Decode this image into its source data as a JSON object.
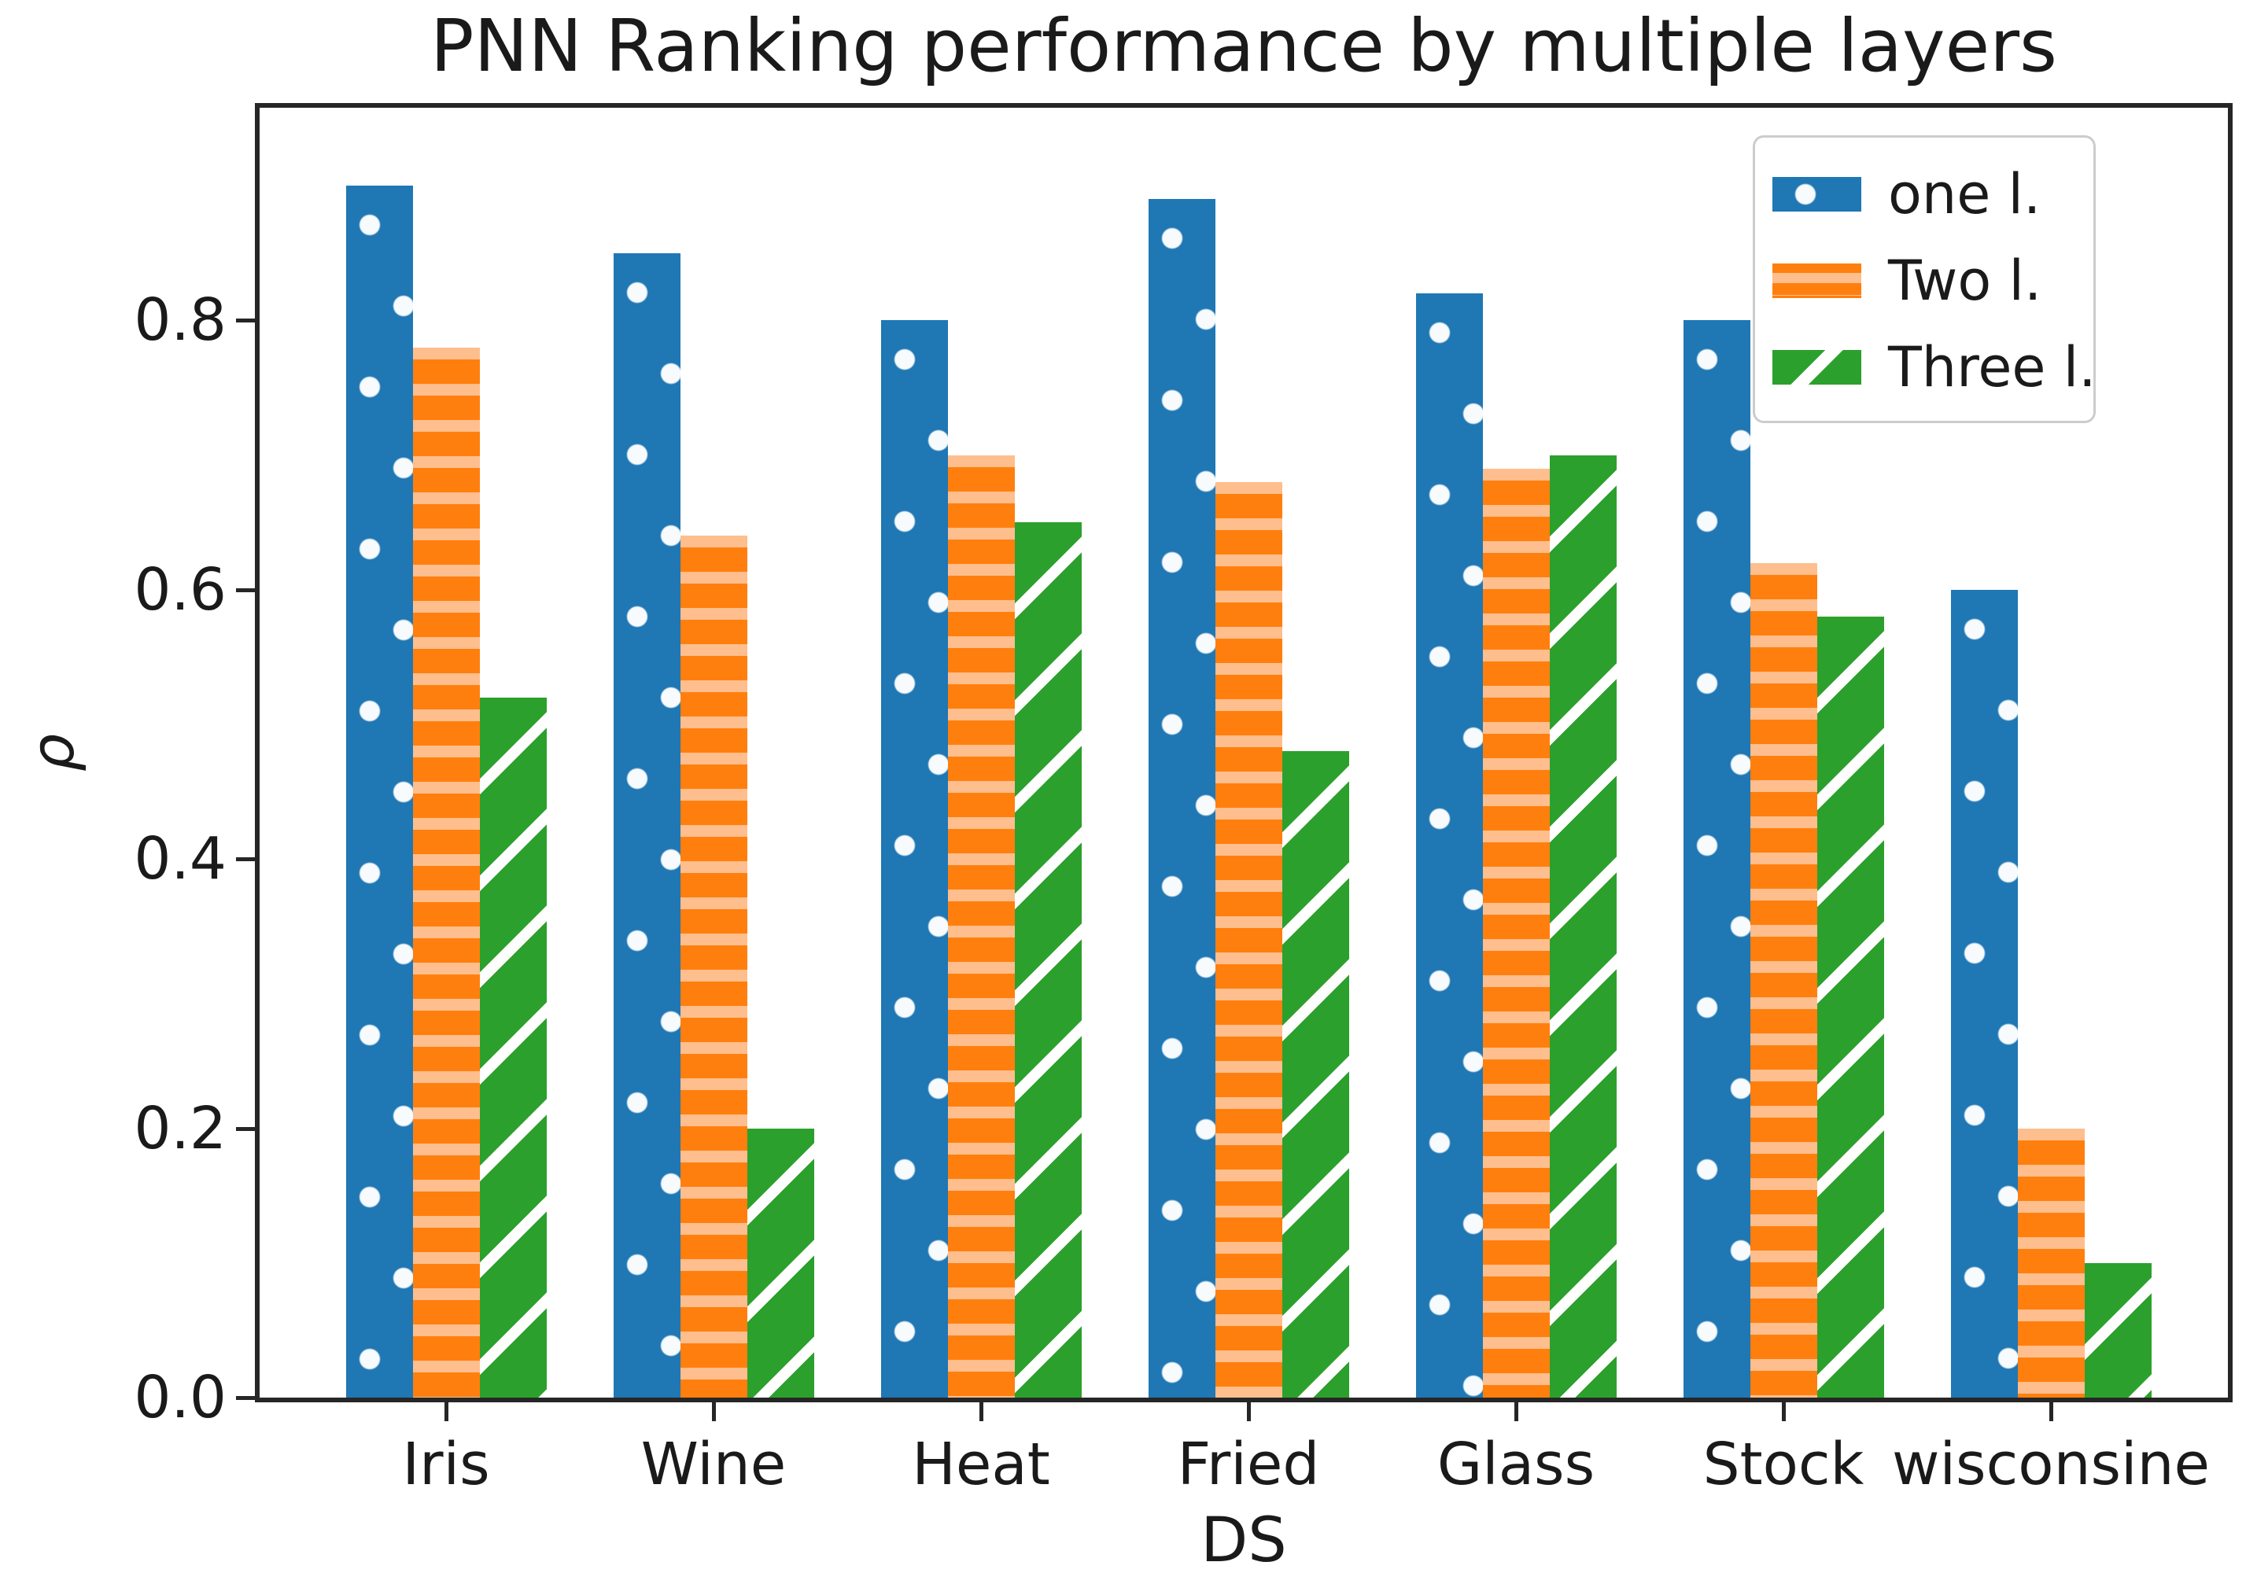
{
  "chart_data": {
    "type": "bar",
    "title": "PNN Ranking performance by multiple layers",
    "xlabel": "DS",
    "ylabel": "ρ",
    "categories": [
      "Iris",
      "Wine",
      "Heat",
      "Fried",
      "Glass",
      "Stock",
      "wisconsine"
    ],
    "series": [
      {
        "name": "one l.",
        "color": "#1f77b4",
        "hatch": "dots",
        "values": [
          0.9,
          0.85,
          0.8,
          0.89,
          0.82,
          0.8,
          0.6
        ]
      },
      {
        "name": "Two l.",
        "color": "#ff7f0e",
        "hatch": "hlines",
        "values": [
          0.78,
          0.64,
          0.7,
          0.68,
          0.69,
          0.62,
          0.2
        ]
      },
      {
        "name": "Three l.",
        "color": "#2ca02c",
        "hatch": "diag",
        "values": [
          0.52,
          0.2,
          0.65,
          0.48,
          0.7,
          0.58,
          0.1
        ]
      }
    ],
    "yticks": [
      0.0,
      0.2,
      0.4,
      0.6,
      0.8
    ],
    "ylim": [
      0,
      0.958
    ],
    "grid": false,
    "legend_position": "upper right",
    "hatch_colors": {
      "dots": "#f7fbfd",
      "hlines": "#ffbe8d",
      "diag": "#ffffff"
    }
  }
}
